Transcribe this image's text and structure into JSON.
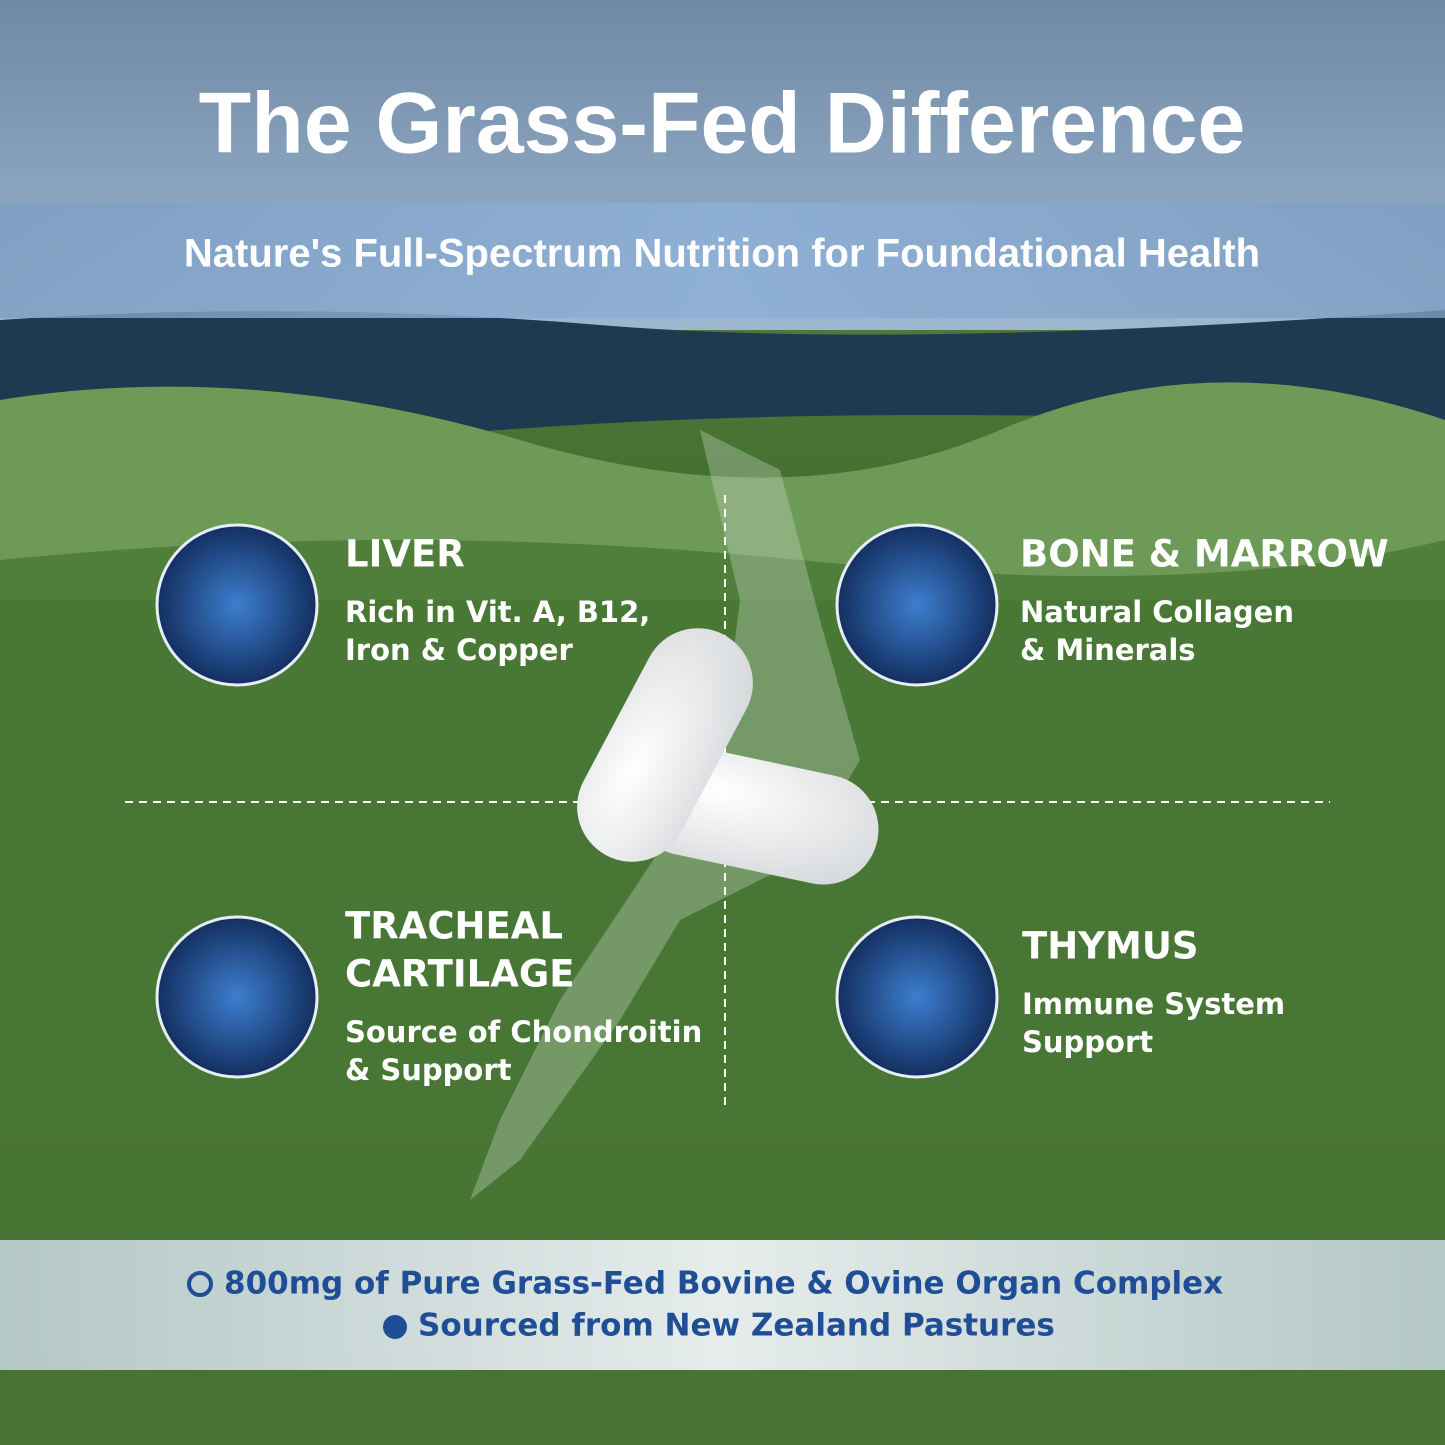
{
  "header": {
    "title": "The Grass-Fed Difference",
    "subtitle": "Nature's Full-Spectrum Nutrition for Foundational Health"
  },
  "features": [
    {
      "title": [
        "LIVER"
      ],
      "description": [
        "Rich in Vit. A, B12,",
        "Iron & Copper"
      ]
    },
    {
      "title": [
        "BONE & MARROW"
      ],
      "description": [
        "Natural Collagen",
        "& Minerals"
      ]
    },
    {
      "title": [
        "TRACHEAL",
        "CARTILAGE"
      ],
      "description": [
        "Source of Chondroitin",
        "& Support"
      ]
    },
    {
      "title": [
        "THYMUS"
      ],
      "description": [
        "Immune System",
        "Support"
      ]
    }
  ],
  "footer": {
    "lines": [
      "800mg of Pure Grass-Fed Bovine & Ovine Organ Complex",
      "Sourced from New Zealand Pastures"
    ]
  }
}
